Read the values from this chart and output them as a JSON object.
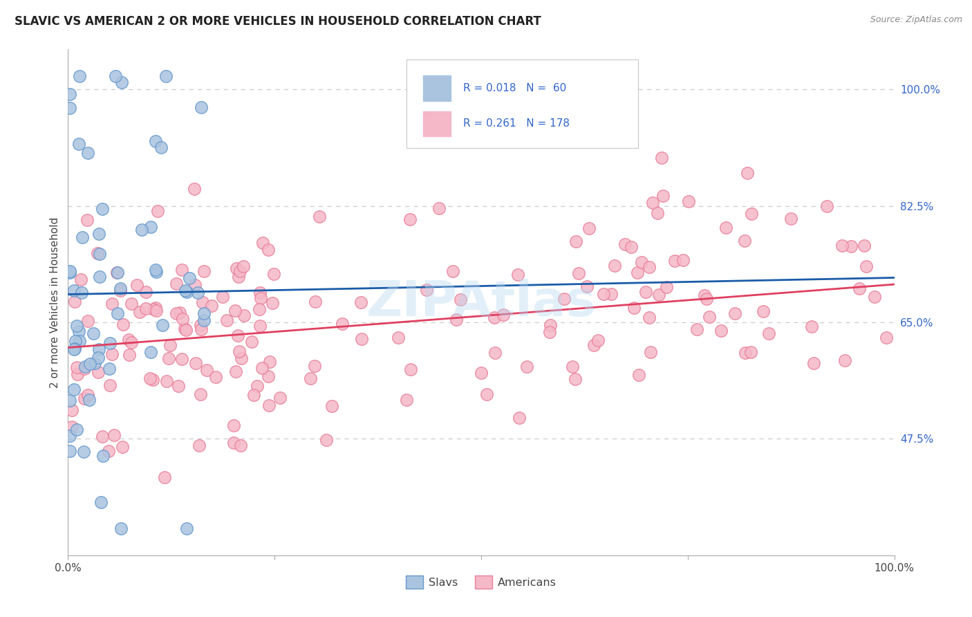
{
  "title": "SLAVIC VS AMERICAN 2 OR MORE VEHICLES IN HOUSEHOLD CORRELATION CHART",
  "source": "Source: ZipAtlas.com",
  "ylabel": "2 or more Vehicles in Household",
  "xlim": [
    0,
    1
  ],
  "ylim": [
    0.3,
    1.06
  ],
  "yticks_right": [
    0.475,
    0.65,
    0.825,
    1.0
  ],
  "slavs_color": "#aac4e0",
  "slavs_edge": "#6699cc",
  "americans_color": "#f5b8c8",
  "americans_edge": "#e8809a",
  "trend_blue": "#1a5ca8",
  "trend_pink": "#e04060",
  "watermark": "ZIPAtlas",
  "background": "#ffffff",
  "title_color": "#222222",
  "source_color": "#888888",
  "axis_color": "#444444",
  "right_tick_color": "#3366cc",
  "bottom_tick_color": "#444444",
  "legend_color": "#3366cc",
  "legend_label1": "Slavs",
  "legend_label2": "Americans",
  "legend_r_label_color": "#333333",
  "slope_blue": 0.025,
  "intercept_blue": 0.692,
  "slope_pink": 0.095,
  "intercept_pink": 0.612,
  "grid_color": "#cccccc",
  "spine_color": "#aaaaaa"
}
